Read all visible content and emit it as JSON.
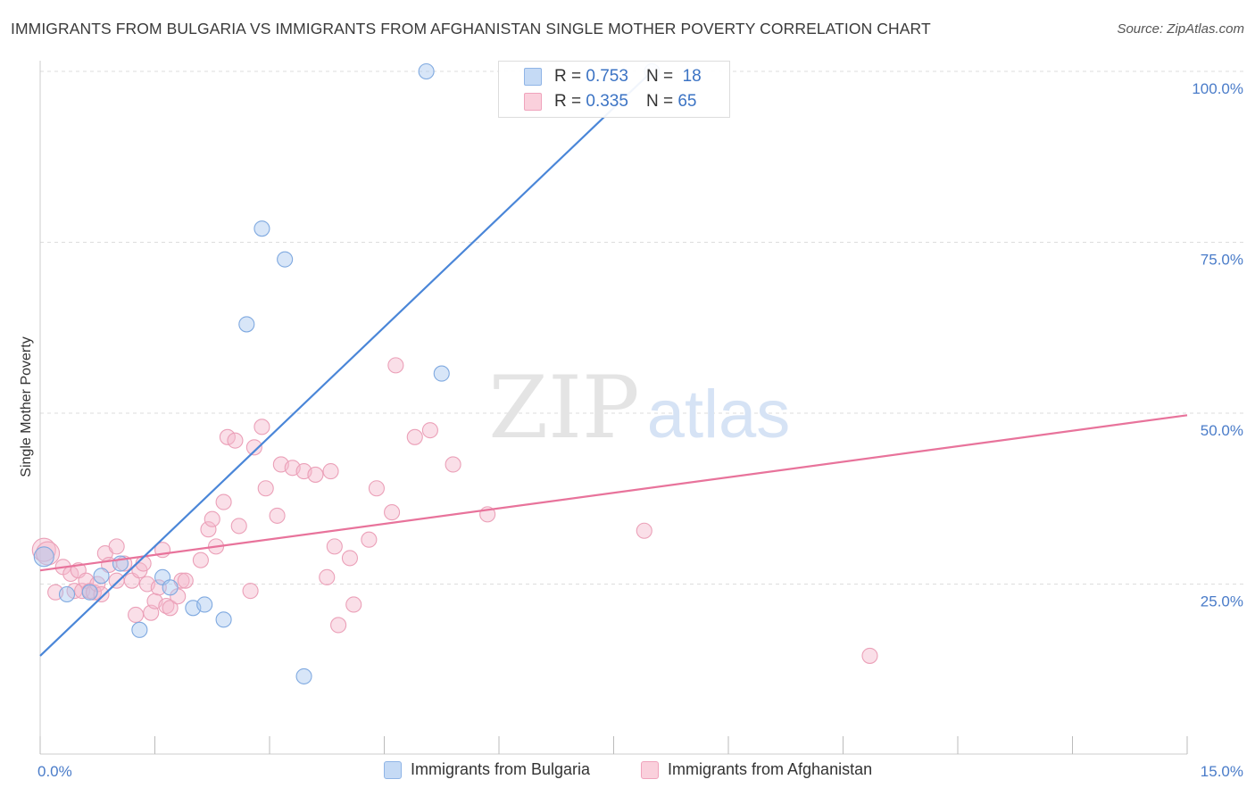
{
  "title": "IMMIGRANTS FROM BULGARIA VS IMMIGRANTS FROM AFGHANISTAN SINGLE MOTHER POVERTY CORRELATION CHART",
  "source": "Source: ZipAtlas.com",
  "watermark": {
    "zip": "ZIP",
    "atlas": "atlas"
  },
  "legend": {
    "rows": [
      {
        "r_label": "R =",
        "r_value": "0.753",
        "n_label": "N =",
        "n_value": "18",
        "color": "#a9c8f0"
      },
      {
        "r_label": "R =",
        "r_value": "0.335",
        "n_label": "N =",
        "n_value": "65",
        "color": "#f5b8cb"
      }
    ]
  },
  "bottom_legend": [
    {
      "label": "Immigrants from Bulgaria",
      "color": "#a9c8f0"
    },
    {
      "label": "Immigrants from Afghanistan",
      "color": "#f5b8cb"
    }
  ],
  "chart_data": {
    "type": "scatter",
    "title": "IMMIGRANTS FROM BULGARIA VS IMMIGRANTS FROM AFGHANISTAN SINGLE MOTHER POVERTY CORRELATION CHART",
    "xlabel": "",
    "ylabel": "Single Mother Poverty",
    "xlim": [
      0,
      15
    ],
    "ylim": [
      0,
      100
    ],
    "x_tick_labels": [
      "0.0%",
      "15.0%"
    ],
    "y_ticks": [
      25,
      50,
      75,
      100
    ],
    "y_tick_labels": [
      "25.0%",
      "50.0%",
      "75.0%",
      "100.0%"
    ],
    "grid": true,
    "colors": {
      "bulgaria": "#4a86d8",
      "afghanistan": "#e8739b"
    },
    "series": [
      {
        "name": "Immigrants from Bulgaria",
        "trend": {
          "x": [
            0,
            8
          ],
          "y": [
            14.5,
            100
          ]
        },
        "points": [
          [
            0.05,
            29
          ],
          [
            0.35,
            23.5
          ],
          [
            0.65,
            23.8
          ],
          [
            0.8,
            26.2
          ],
          [
            1.05,
            28
          ],
          [
            1.3,
            18.3
          ],
          [
            1.6,
            26
          ],
          [
            1.7,
            24.5
          ],
          [
            2.0,
            21.5
          ],
          [
            2.15,
            22
          ],
          [
            2.4,
            19.8
          ],
          [
            2.7,
            63
          ],
          [
            2.9,
            77
          ],
          [
            3.2,
            72.5
          ],
          [
            3.45,
            11.5
          ],
          [
            5.05,
            100
          ],
          [
            5.25,
            55.8
          ],
          [
            8.0,
            100
          ]
        ]
      },
      {
        "name": "Immigrants from Afghanistan",
        "trend": {
          "x": [
            0,
            15
          ],
          "y": [
            27,
            49.7
          ]
        },
        "points": [
          [
            0.05,
            30
          ],
          [
            0.1,
            29.5
          ],
          [
            0.2,
            23.8
          ],
          [
            0.3,
            27.5
          ],
          [
            0.4,
            26.5
          ],
          [
            0.45,
            24
          ],
          [
            0.5,
            27
          ],
          [
            0.55,
            24
          ],
          [
            0.6,
            25.5
          ],
          [
            0.65,
            24
          ],
          [
            0.7,
            23.8
          ],
          [
            0.75,
            25
          ],
          [
            0.8,
            23.5
          ],
          [
            0.85,
            29.5
          ],
          [
            0.9,
            27.8
          ],
          [
            1.0,
            25.5
          ],
          [
            1.0,
            30.5
          ],
          [
            1.1,
            28
          ],
          [
            1.2,
            25.5
          ],
          [
            1.25,
            20.5
          ],
          [
            1.3,
            27
          ],
          [
            1.35,
            28
          ],
          [
            1.4,
            25
          ],
          [
            1.45,
            20.8
          ],
          [
            1.5,
            22.5
          ],
          [
            1.55,
            24.5
          ],
          [
            1.6,
            30
          ],
          [
            1.65,
            21.8
          ],
          [
            1.7,
            21.5
          ],
          [
            1.8,
            23.2
          ],
          [
            1.85,
            25.5
          ],
          [
            1.9,
            25.5
          ],
          [
            2.1,
            28.5
          ],
          [
            2.2,
            33
          ],
          [
            2.25,
            34.5
          ],
          [
            2.3,
            30.5
          ],
          [
            2.4,
            37
          ],
          [
            2.45,
            46.5
          ],
          [
            2.55,
            46
          ],
          [
            2.6,
            33.5
          ],
          [
            2.75,
            24
          ],
          [
            2.8,
            45
          ],
          [
            2.9,
            48
          ],
          [
            2.95,
            39
          ],
          [
            3.1,
            35
          ],
          [
            3.15,
            42.5
          ],
          [
            3.3,
            42
          ],
          [
            3.45,
            41.5
          ],
          [
            3.6,
            41
          ],
          [
            3.75,
            26
          ],
          [
            3.8,
            41.5
          ],
          [
            3.85,
            30.5
          ],
          [
            3.9,
            19
          ],
          [
            4.05,
            28.8
          ],
          [
            4.1,
            22
          ],
          [
            4.3,
            31.5
          ],
          [
            4.4,
            39
          ],
          [
            4.6,
            35.5
          ],
          [
            4.65,
            57
          ],
          [
            4.9,
            46.5
          ],
          [
            5.1,
            47.5
          ],
          [
            5.4,
            42.5
          ],
          [
            5.85,
            35.2
          ],
          [
            7.9,
            32.8
          ],
          [
            10.85,
            14.5
          ]
        ]
      }
    ]
  }
}
